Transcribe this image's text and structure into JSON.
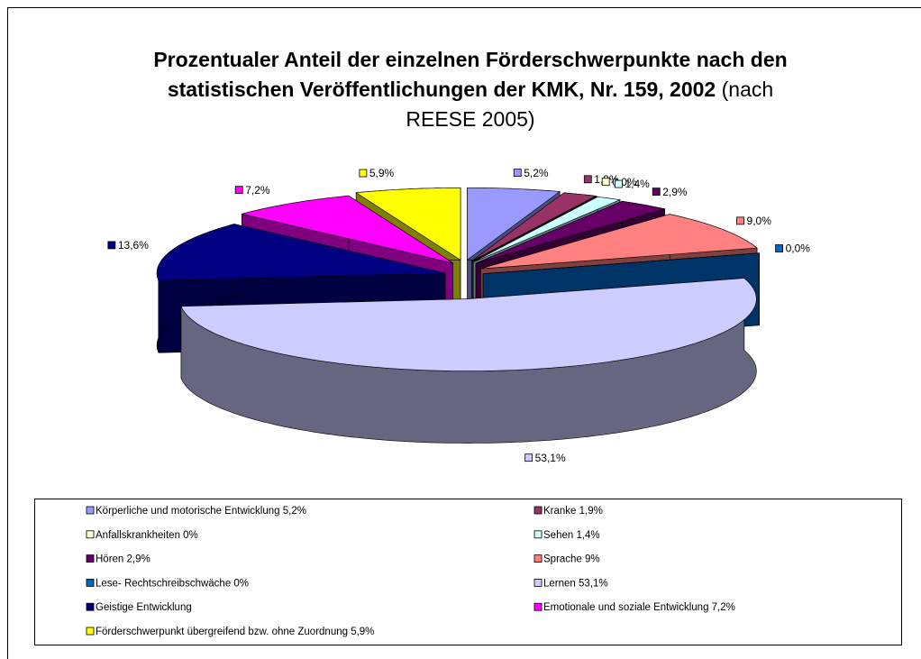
{
  "chart_data": {
    "type": "pie",
    "title": "Prozentualer Anteil der einzelnen Förderschwerpunkte nach den statistischen Veröffentlichungen der KMK, Nr. 159, 2002",
    "subtitle": "(nach REESE 2005)",
    "categories": [
      "Körperliche und motorische Entwicklung 5,2%",
      "Kranke 1,9%",
      "Anfallskrankheiten 0%",
      "Sehen 1,4%",
      "Hören 2,9%",
      "Sprache 9%",
      "Lese- Rechtschreibschwäche 0%",
      "Lernen 53,1%",
      "Geistige Entwicklung",
      "Emotionale und soziale Entwicklung 7,2%",
      "Förderschwerpunkt übergreifend bzw. ohne Zuordnung 5,9%"
    ],
    "values": [
      5.2,
      1.9,
      0,
      1.4,
      2.9,
      9,
      0,
      53.1,
      13.6,
      7.2,
      5.9
    ],
    "value_labels": [
      "5,2%",
      "1,9%",
      "0,0%",
      "1,4%",
      "2,9%",
      "9,0%",
      "0,0%",
      "53,1%",
      "13,6%",
      "7,2%",
      "5,9%"
    ],
    "colors": [
      "#9999ff",
      "#993366",
      "#ffffcc",
      "#ccffff",
      "#660066",
      "#ff8080",
      "#0066cc",
      "#ccccff",
      "#000080",
      "#ff00ff",
      "#ffff00"
    ],
    "legend": "bottom"
  }
}
